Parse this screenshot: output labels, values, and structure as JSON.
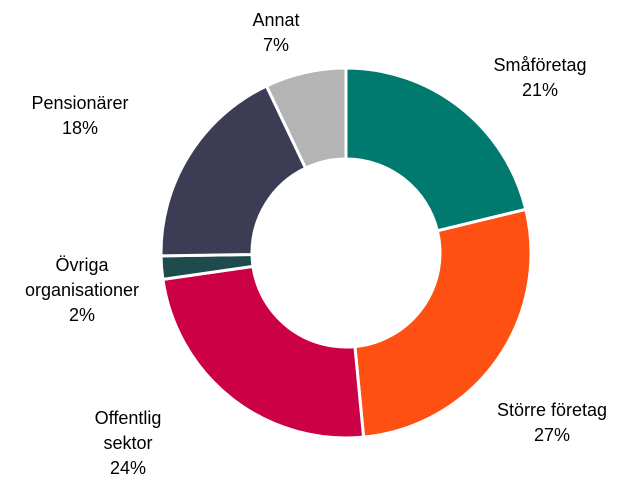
{
  "chart_data": {
    "type": "donut",
    "categories": [
      "Småföretag",
      "Större företag",
      "Offentlig sektor",
      "Övriga organisationer",
      "Pensionärer",
      "Annat"
    ],
    "values": [
      21,
      27,
      24,
      2,
      18,
      7
    ],
    "value_labels": [
      "21%",
      "27%",
      "24%",
      "2%",
      "18%",
      "7%"
    ],
    "colors": [
      "#007a6e",
      "#ff5014",
      "#cc0044",
      "#1e4b4b",
      "#3c3c55",
      "#b4b4b4"
    ]
  }
}
